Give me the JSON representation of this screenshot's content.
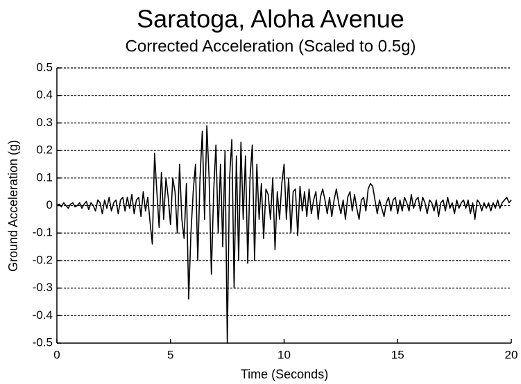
{
  "chart_data": {
    "type": "line",
    "title": "Saratoga, Aloha Avenue",
    "subtitle": "Corrected Acceleration (Scaled to 0.5g)",
    "x_label": "Time (Seconds)",
    "y_label": "Ground Acceleration (g)",
    "xlim": [
      0,
      20
    ],
    "xticks": [
      0,
      5,
      10,
      15,
      20
    ],
    "ylim": [
      -0.5,
      0.5
    ],
    "yticks": [
      -0.5,
      -0.4,
      -0.3,
      -0.2,
      -0.1,
      0,
      0.1,
      0.2,
      0.3,
      0.4,
      0.5
    ],
    "grid": true,
    "x": [
      0,
      0.1,
      0.2,
      0.3,
      0.4,
      0.5,
      0.6,
      0.7,
      0.8,
      0.9,
      1,
      1.1,
      1.2,
      1.3,
      1.4,
      1.5,
      1.6,
      1.7,
      1.8,
      1.9,
      2,
      2.1,
      2.2,
      2.3,
      2.4,
      2.5,
      2.6,
      2.7,
      2.8,
      2.9,
      3,
      3.1,
      3.2,
      3.3,
      3.4,
      3.5,
      3.6,
      3.7,
      3.8,
      3.9,
      4,
      4.1,
      4.2,
      4.3,
      4.4,
      4.5,
      4.6,
      4.7,
      4.8,
      4.9,
      5,
      5.1,
      5.2,
      5.3,
      5.4,
      5.5,
      5.6,
      5.7,
      5.8,
      5.9,
      6,
      6.1,
      6.2,
      6.3,
      6.4,
      6.5,
      6.6,
      6.7,
      6.8,
      6.9,
      7,
      7.1,
      7.2,
      7.3,
      7.4,
      7.5,
      7.6,
      7.7,
      7.8,
      7.9,
      8,
      8.1,
      8.2,
      8.3,
      8.4,
      8.5,
      8.6,
      8.7,
      8.8,
      8.9,
      9,
      9.1,
      9.2,
      9.3,
      9.4,
      9.5,
      9.6,
      9.7,
      9.8,
      9.9,
      10,
      10.1,
      10.2,
      10.3,
      10.4,
      10.5,
      10.6,
      10.7,
      10.8,
      10.9,
      11,
      11.1,
      11.2,
      11.3,
      11.4,
      11.5,
      11.6,
      11.7,
      11.8,
      11.9,
      12,
      12.1,
      12.2,
      12.3,
      12.4,
      12.5,
      12.6,
      12.7,
      12.8,
      12.9,
      13,
      13.1,
      13.2,
      13.3,
      13.4,
      13.5,
      13.6,
      13.7,
      13.8,
      13.9,
      14,
      14.1,
      14.2,
      14.3,
      14.4,
      14.5,
      14.6,
      14.7,
      14.8,
      14.9,
      15,
      15.1,
      15.2,
      15.3,
      15.4,
      15.5,
      15.6,
      15.7,
      15.8,
      15.9,
      16,
      16.1,
      16.2,
      16.3,
      16.4,
      16.5,
      16.6,
      16.7,
      16.8,
      16.9,
      17,
      17.1,
      17.2,
      17.3,
      17.4,
      17.5,
      17.6,
      17.7,
      17.8,
      17.9,
      18,
      18.1,
      18.2,
      18.3,
      18.4,
      18.5,
      18.6,
      18.7,
      18.8,
      18.9,
      19,
      19.1,
      19.2,
      19.3,
      19.4,
      19.5,
      19.6,
      19.7,
      19.8,
      19.9,
      20
    ],
    "series": [
      {
        "name": "Ground Acceleration",
        "color": "#000000",
        "values": [
          0,
          0.005,
          -0.005,
          0.01,
          0,
          -0.01,
          0.005,
          0.01,
          -0.005,
          0,
          0.01,
          -0.01,
          0.005,
          0.015,
          -0.015,
          0.01,
          0,
          -0.02,
          0.02,
          0.01,
          -0.03,
          0.02,
          -0.01,
          0.03,
          -0.02,
          0.01,
          0.02,
          -0.03,
          0.02,
          0.03,
          -0.02,
          0.03,
          -0.01,
          0.04,
          -0.03,
          0.02,
          0.03,
          -0.04,
          0.05,
          -0.02,
          0.03,
          -0.06,
          -0.14,
          0.19,
          0.05,
          -0.08,
          0.12,
          -0.05,
          0.1,
          0.03,
          -0.07,
          0.1,
          0.05,
          -0.1,
          0.15,
          -0.05,
          -0.12,
          0.08,
          -0.34,
          -0.1,
          0.05,
          0.15,
          -0.2,
          0.1,
          0.27,
          -0.05,
          0.29,
          0.1,
          -0.25,
          0.05,
          0.22,
          -0.1,
          0.15,
          -0.15,
          0.2,
          -0.5,
          0.1,
          0.24,
          -0.3,
          0.18,
          -0.2,
          0.23,
          -0.05,
          0.18,
          -0.21,
          0.1,
          0.22,
          -0.2,
          0.15,
          -0.05,
          0.08,
          -0.12,
          0.06,
          0.04,
          -0.05,
          0.1,
          -0.16,
          0.05,
          -0.05,
          0.08,
          0.15,
          -0.05,
          0.1,
          -0.1,
          0.05,
          0.06,
          -0.11,
          0.07,
          -0.02,
          0.05,
          -0.04,
          0.06,
          -0.03,
          0.02,
          0.05,
          -0.05,
          0.03,
          0.06,
          0.02,
          -0.03,
          0.03,
          -0.04,
          0.02,
          0.06,
          0.01,
          -0.03,
          0.02,
          -0.05,
          0.03,
          0.05,
          -0.02,
          0.04,
          -0.01,
          -0.05,
          0.02,
          0.03,
          -0.02,
          0.06,
          0.08,
          0.07,
          0.02,
          -0.03,
          0.02,
          -0.01,
          -0.04,
          0.01,
          0.03,
          -0.02,
          0.02,
          0.03,
          -0.03,
          0.02,
          -0.02,
          0.03,
          0.01,
          -0.02,
          0.04,
          -0.01,
          0.02,
          0.03,
          -0.02,
          0.03,
          0.01,
          -0.03,
          0.02,
          0.01,
          -0.02,
          0.02,
          -0.04,
          0.01,
          0.02,
          -0.02,
          0.03,
          -0.01,
          0.01,
          -0.03,
          0.02,
          -0.01,
          0.01,
          0.02,
          -0.01,
          0.02,
          -0.03,
          0.01,
          -0.05,
          0.02,
          0.01,
          -0.02,
          0.01,
          -0.01,
          0.01,
          -0.02,
          0.01,
          -0.01,
          0.02,
          -0.01,
          0.01,
          0.02,
          0.03,
          0.01,
          0.02
        ]
      }
    ]
  }
}
